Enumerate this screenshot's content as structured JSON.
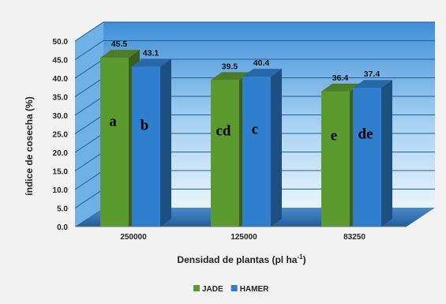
{
  "chart_data": {
    "type": "bar",
    "xlabel": "Densidad de plantas (pl ha",
    "xlabel_sup": "-1",
    "xlabel_close": ")",
    "ylabel": "índice de cosecha (%)",
    "ylim": [
      0,
      50
    ],
    "yticks": [
      "0.0",
      "5.0",
      "10.0",
      "15.0",
      "20.0",
      "25.0",
      "30.0",
      "35.0",
      "40.0",
      "45.0",
      "50.0"
    ],
    "categories": [
      "250000",
      "125000",
      "83250"
    ],
    "series": [
      {
        "name": "JADE",
        "values": [
          45.5,
          39.5,
          36.4
        ],
        "labels": [
          "45.5",
          "39.5",
          "36.4"
        ],
        "letters": [
          "a",
          "cd",
          "e"
        ],
        "color": "#5b9a2f"
      },
      {
        "name": "HAMER",
        "values": [
          43.1,
          40.4,
          37.4
        ],
        "labels": [
          "43.1",
          "40.4",
          "37.4"
        ],
        "letters": [
          "b",
          "c",
          "de"
        ],
        "color": "#2f7fce"
      }
    ],
    "legend_position": "bottom-center",
    "grid": true
  }
}
